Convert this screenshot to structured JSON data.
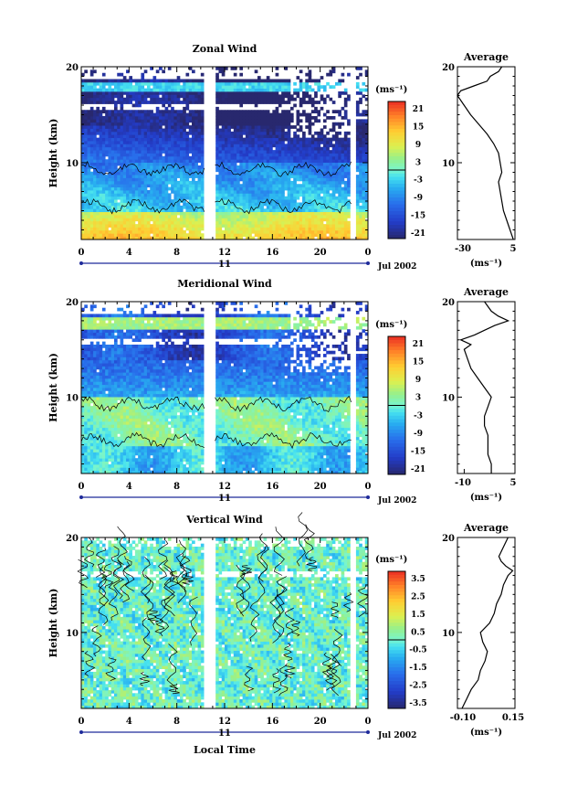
{
  "chart_data": [
    {
      "type": "heatmap",
      "title": "Zonal Wind",
      "ylabel": "Height (km)",
      "ylim": [
        2,
        20
      ],
      "y_ticks": [
        "10",
        "20"
      ],
      "x_ticks": [
        "0",
        "4",
        "8",
        "12",
        "16",
        "20",
        "0"
      ],
      "date_label": "11",
      "month_label": "Jul 2002",
      "colorbar": {
        "unit": "(ms⁻¹)",
        "labels": [
          "21",
          "15",
          "9",
          "3",
          "-3",
          "-9",
          "-15",
          "-21"
        ],
        "range": [
          -21,
          21
        ]
      },
      "data_gap_hours": [
        [
          10.3,
          11.2
        ],
        [
          22.6,
          23.0
        ]
      ],
      "profile_hint": "strong easterlies near 17 km, weak westerlies near the ground",
      "average": {
        "title": "Average",
        "x_unit": "(ms⁻¹)",
        "x_ticks": [
          "-30",
          "5"
        ],
        "xlim": [
          -30,
          5
        ],
        "height": [
          2,
          3,
          4,
          5,
          6,
          7,
          8,
          9,
          10,
          11,
          12,
          13,
          14,
          15,
          16,
          17,
          17.5,
          18,
          18.5,
          19,
          19.5,
          20
        ],
        "value": [
          4,
          2,
          0,
          -2,
          -3,
          -4,
          -5,
          -3,
          -4,
          -5,
          -8,
          -12,
          -17,
          -22,
          -26,
          -30,
          -28,
          -20,
          -12,
          -10,
          -5,
          -3
        ]
      }
    },
    {
      "type": "heatmap",
      "title": "Meridional Wind",
      "ylabel": "Height (km)",
      "ylim": [
        2,
        20
      ],
      "y_ticks": [
        "10",
        "20"
      ],
      "x_ticks": [
        "0",
        "4",
        "8",
        "12",
        "16",
        "20",
        "0"
      ],
      "date_label": "11",
      "month_label": "Jul 2002",
      "colorbar": {
        "unit": "(ms⁻¹)",
        "labels": [
          "21",
          "15",
          "9",
          "3",
          "-3",
          "-9",
          "-15",
          "-21"
        ],
        "range": [
          -21,
          21
        ]
      },
      "data_gap_hours": [
        [
          10.3,
          11.2
        ],
        [
          22.6,
          23.0
        ]
      ],
      "average": {
        "title": "Average",
        "x_unit": "(ms⁻¹)",
        "x_ticks": [
          "-10",
          "5"
        ],
        "xlim": [
          -12,
          5
        ],
        "height": [
          2,
          3,
          4,
          5,
          6,
          7,
          8,
          9,
          10,
          11,
          12,
          13,
          14,
          15,
          15.5,
          16,
          16.5,
          17,
          17.5,
          18,
          18.5,
          19,
          20
        ],
        "value": [
          -2,
          -2,
          -3,
          -3,
          -3,
          -4,
          -4,
          -3,
          -2,
          -4,
          -6,
          -8,
          -9,
          -10,
          -8,
          -11,
          -7,
          -4,
          -1,
          3,
          0,
          -2,
          -4
        ]
      }
    },
    {
      "type": "heatmap",
      "title": "Vertical Wind",
      "xlabel": "Local Time",
      "ylabel": "Height (km)",
      "ylim": [
        2,
        20
      ],
      "y_ticks": [
        "10",
        "20"
      ],
      "x_ticks": [
        "0",
        "4",
        "8",
        "12",
        "16",
        "20",
        "0"
      ],
      "date_label": "11",
      "month_label": "Jul 2002",
      "colorbar": {
        "unit": "(ms⁻¹)",
        "labels": [
          "3.5",
          "2.5",
          "1.5",
          "0.5",
          "-0.5",
          "-1.5",
          "-2.5",
          "-3.5"
        ],
        "range": [
          -3.5,
          3.5
        ]
      },
      "data_gap_hours": [
        [
          10.3,
          11.2
        ],
        [
          22.6,
          23.0
        ]
      ],
      "average": {
        "title": "Average",
        "x_unit": "(ms⁻¹)",
        "x_ticks": [
          "-0.10",
          "0.15"
        ],
        "xlim": [
          -0.1,
          0.15
        ],
        "height": [
          2,
          3,
          4,
          5,
          6,
          7,
          8,
          9,
          10,
          11,
          12,
          13,
          14,
          15,
          16,
          16.5,
          17,
          17.5,
          18,
          19,
          20
        ],
        "value": [
          -0.08,
          -0.06,
          -0.04,
          -0.01,
          0.0,
          0.02,
          0.03,
          0.01,
          0.0,
          0.04,
          0.06,
          0.07,
          0.09,
          0.1,
          0.12,
          0.14,
          0.11,
          0.09,
          0.08,
          0.1,
          0.12
        ]
      }
    }
  ]
}
